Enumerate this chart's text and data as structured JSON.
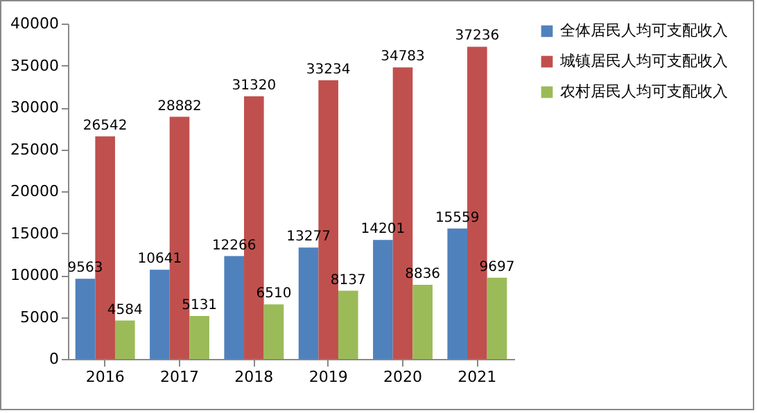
{
  "chart_data": {
    "type": "bar",
    "categories": [
      "2016",
      "2017",
      "2018",
      "2019",
      "2020",
      "2021"
    ],
    "series": [
      {
        "name": "全体居民人均可支配收入",
        "color": "#4f81bd",
        "values": [
          9563,
          10641,
          12266,
          13277,
          14201,
          15559
        ]
      },
      {
        "name": "城镇居民人均可支配收入",
        "color": "#c0504d",
        "values": [
          26542,
          28882,
          31320,
          33234,
          34783,
          37236
        ]
      },
      {
        "name": "农村居民人均可支配收入",
        "color": "#9bbb59",
        "values": [
          4584,
          5131,
          6510,
          8137,
          8836,
          9697
        ]
      }
    ],
    "ylim": [
      0,
      40000
    ],
    "yticks": [
      0,
      5000,
      10000,
      15000,
      20000,
      25000,
      30000,
      35000,
      40000
    ],
    "data_labels": true,
    "legend": "right"
  }
}
